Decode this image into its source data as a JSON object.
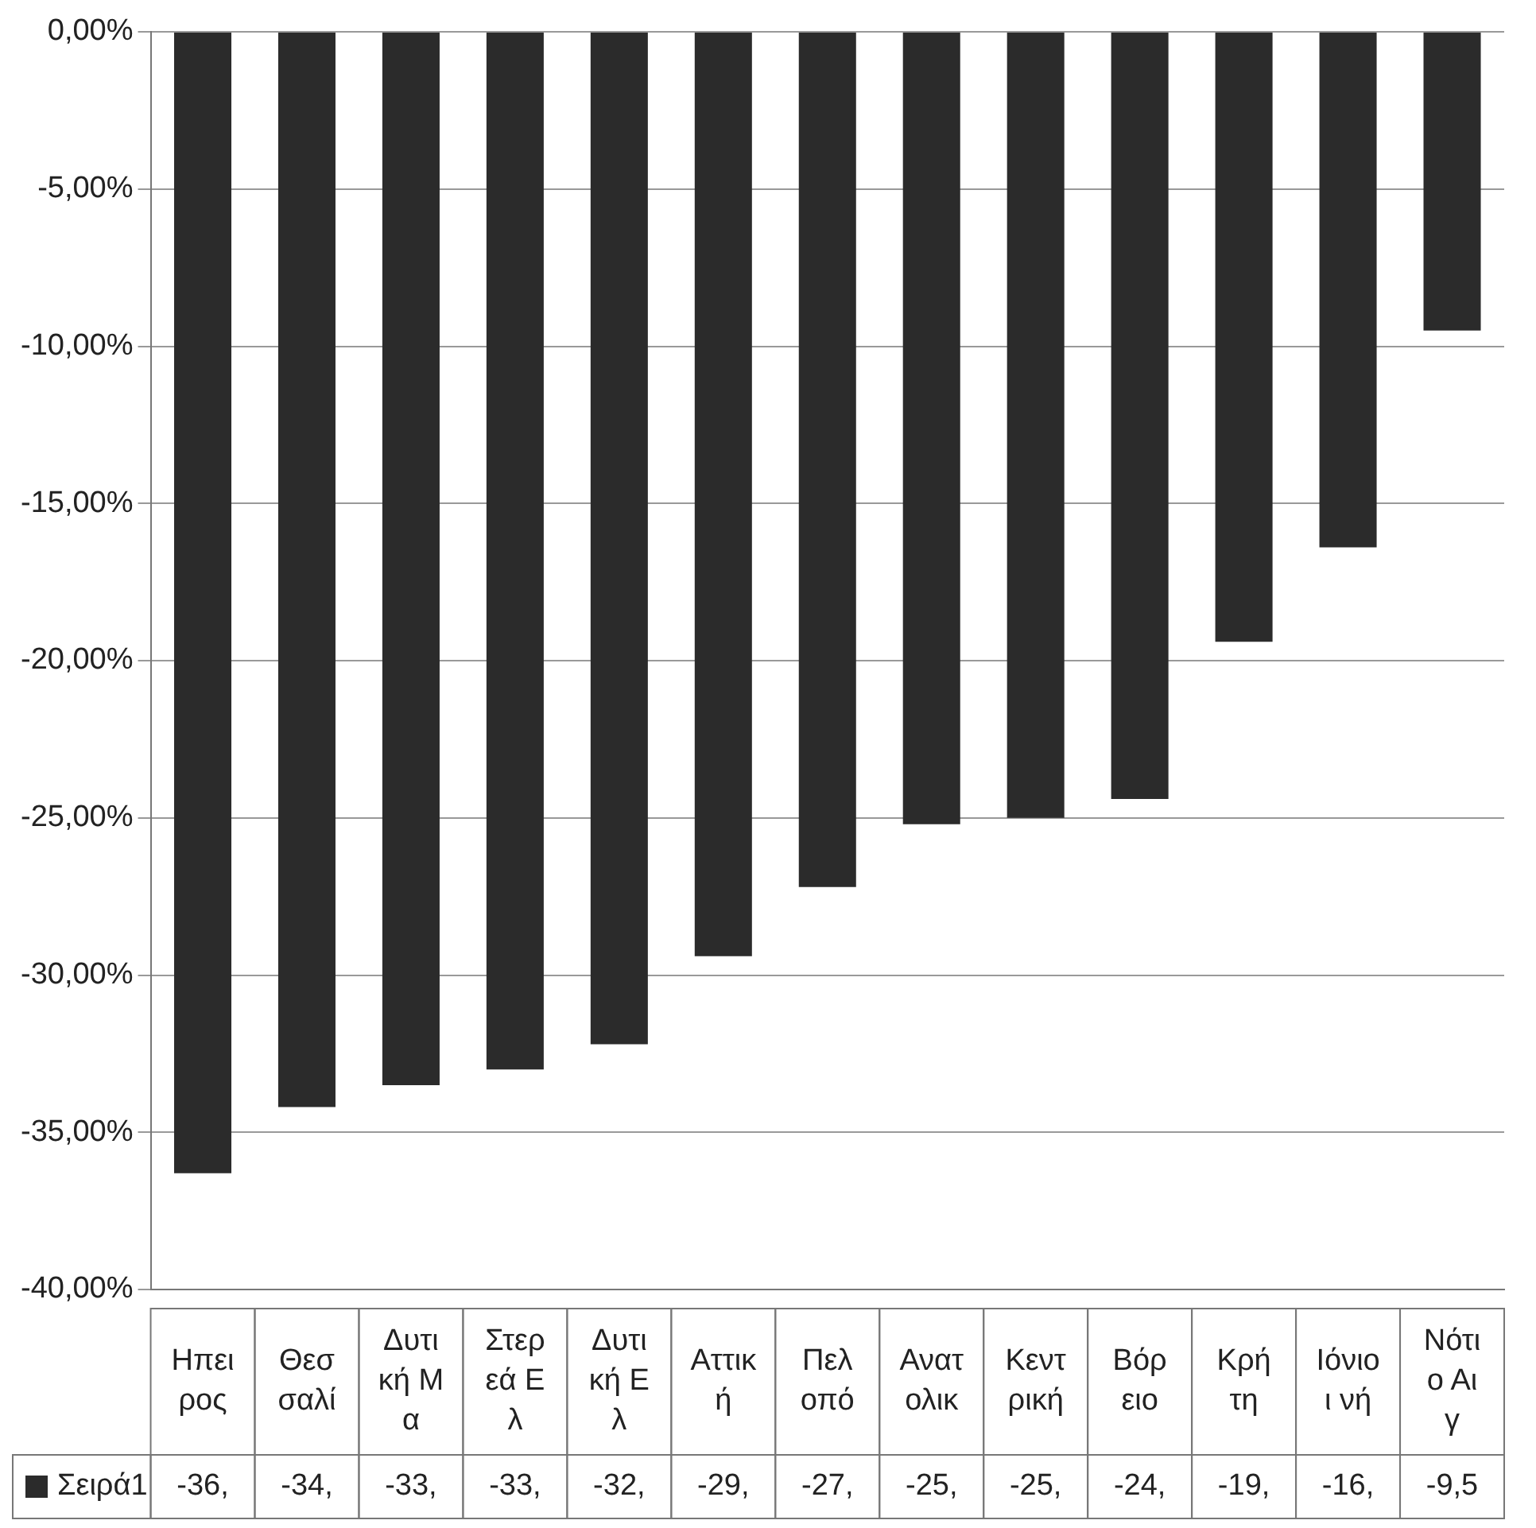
{
  "chart_data": {
    "type": "bar",
    "categories": [
      "Ηπειρος",
      "Θεσσαλί",
      "Δυτική Μα",
      "Στερεά Ελ",
      "Δυτική Ελ",
      "Αττική",
      "Πελοπό",
      "Ανατολικ",
      "Κεντρική",
      "Βόρειο",
      "Κρήτη",
      "Ιόνιοι νή",
      "Νότιο Αιγ"
    ],
    "series": [
      {
        "name": "Σειρά1",
        "color": "#2b2b2b",
        "values": [
          -36.3,
          -34.2,
          -33.5,
          -33.0,
          -32.2,
          -29.4,
          -27.2,
          -25.2,
          -25.0,
          -24.4,
          -19.4,
          -16.4,
          -9.5
        ],
        "value_labels": [
          "-36,",
          "-34,",
          "-33,",
          "-33,",
          "-32,",
          "-29,",
          "-27,",
          "-25,",
          "-25,",
          "-24,",
          "-19,",
          "-16,",
          "-9,5"
        ]
      }
    ],
    "ylim": [
      -40,
      0
    ],
    "yticks": [
      {
        "value": 0,
        "label": "0,00%"
      },
      {
        "value": -5,
        "label": "-5,00%"
      },
      {
        "value": -10,
        "label": "-10,00%"
      },
      {
        "value": -15,
        "label": "-15,00%"
      },
      {
        "value": -20,
        "label": "-20,00%"
      },
      {
        "value": -25,
        "label": "-25,00%"
      },
      {
        "value": -30,
        "label": "-30,00%"
      },
      {
        "value": -35,
        "label": "-35,00%"
      },
      {
        "value": -40,
        "label": "-40,00%"
      }
    ],
    "grid": "y",
    "legend": "bottom left"
  }
}
